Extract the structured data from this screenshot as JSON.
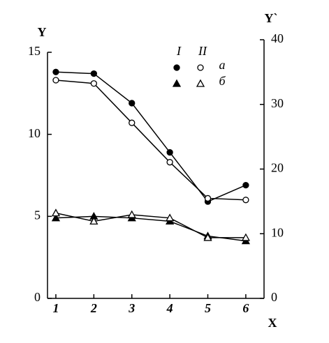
{
  "chart_data": {
    "type": "line",
    "y_label": "Y",
    "y2_label": "Y`",
    "x_label": "X",
    "x": [
      1,
      2,
      3,
      4,
      5,
      6
    ],
    "xlim": [
      0.78,
      6.48
    ],
    "xticks": [
      1,
      2,
      3,
      4,
      5,
      6
    ],
    "ylim": [
      0,
      15
    ],
    "yticks": [
      0,
      5,
      10,
      15
    ],
    "y2lim": [
      0,
      40
    ],
    "y2ticks": [
      0,
      10,
      20,
      30,
      40
    ],
    "legend": {
      "columns": [
        "I",
        "II"
      ],
      "rows": [
        "а",
        "б"
      ]
    },
    "color": "#000000",
    "series": [
      {
        "marker": "circle",
        "filled": true,
        "values": [
          13.8,
          13.7,
          11.9,
          8.9,
          5.9,
          6.9
        ]
      },
      {
        "marker": "circle",
        "filled": false,
        "values": [
          13.3,
          13.1,
          10.7,
          8.3,
          6.1,
          6.0
        ]
      },
      {
        "marker": "triangle",
        "filled": true,
        "values": [
          4.9,
          5.0,
          4.9,
          4.7,
          3.8,
          3.5
        ]
      },
      {
        "marker": "triangle",
        "filled": false,
        "values": [
          5.2,
          4.7,
          5.1,
          4.9,
          3.7,
          3.7
        ]
      }
    ]
  }
}
